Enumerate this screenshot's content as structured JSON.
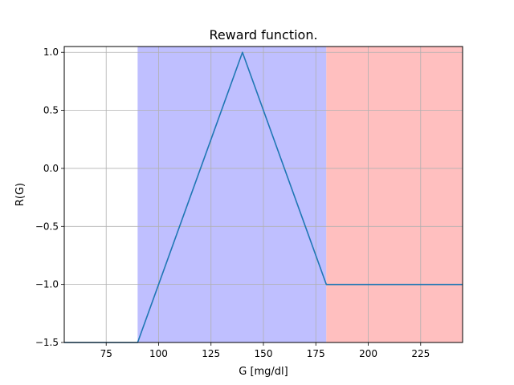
{
  "chart_data": {
    "type": "line",
    "title": "Reward function.",
    "xlabel": "G [mg/dl]",
    "ylabel": "R(G)",
    "xlim": [
      55,
      245
    ],
    "ylim": [
      -1.5,
      1.05
    ],
    "x_ticks": [
      75,
      100,
      125,
      150,
      175,
      200,
      225
    ],
    "y_ticks": [
      1.0,
      0.5,
      0.0,
      -0.5,
      -1.0,
      -1.5
    ],
    "x_tick_labels": [
      "75",
      "100",
      "125",
      "150",
      "175",
      "200",
      "225"
    ],
    "y_tick_labels": [
      "1.0",
      "0.5",
      "0.0",
      "−0.5",
      "−1.0",
      "−1.5"
    ],
    "grid": true,
    "shaded_regions": [
      {
        "x_start": 90,
        "x_end": 180,
        "color": "#bfbfff"
      },
      {
        "x_start": 180,
        "x_end": 245,
        "color": "#ffbfbf"
      }
    ],
    "series": [
      {
        "color": "#1f77b4",
        "x": [
          55,
          90,
          140,
          180,
          245
        ],
        "y": [
          -1.5,
          -1.5,
          1.0,
          -1.0,
          -1.0
        ]
      }
    ]
  }
}
